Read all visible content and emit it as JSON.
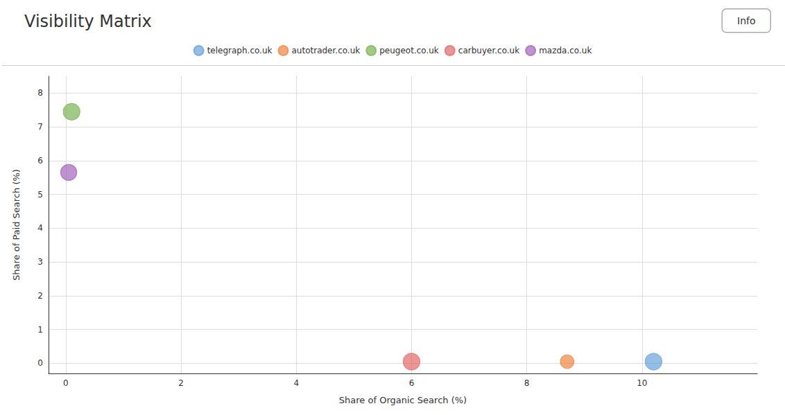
{
  "chart_data": {
    "type": "scatter",
    "title": "Visibility Matrix",
    "xlabel": "Share of Organic Search (%)",
    "ylabel": "Share of Paid Search (%)",
    "series": [
      {
        "name": "telegraph.co.uk",
        "color": "#5b9bd5",
        "x": [
          10.2
        ],
        "values": [
          0.05
        ],
        "sizes": [
          300
        ]
      },
      {
        "name": "autotrader.co.uk",
        "color": "#ed7d31",
        "x": [
          8.7
        ],
        "values": [
          0.05
        ],
        "sizes": [
          200
        ]
      },
      {
        "name": "peugeot.co.uk",
        "color": "#70ad47",
        "x": [
          0.1
        ],
        "values": [
          7.45
        ],
        "sizes": [
          300
        ]
      },
      {
        "name": "carbuyer.co.uk",
        "color": "#e05c5c",
        "x": [
          6.0
        ],
        "values": [
          0.05
        ],
        "sizes": [
          300
        ]
      },
      {
        "name": "mazda.co.uk",
        "color": "#9b59b6",
        "x": [
          0.05
        ],
        "values": [
          5.65
        ],
        "sizes": [
          280
        ]
      }
    ],
    "xlim": [
      -0.3,
      12
    ],
    "ylim": [
      -0.3,
      8.5
    ],
    "xticks": [
      0,
      2,
      4,
      6,
      8,
      10
    ],
    "yticks": [
      0,
      1,
      2,
      3,
      4,
      5,
      6,
      7,
      8
    ],
    "grid": true,
    "legend": "top",
    "annotations": [
      "Info"
    ]
  }
}
